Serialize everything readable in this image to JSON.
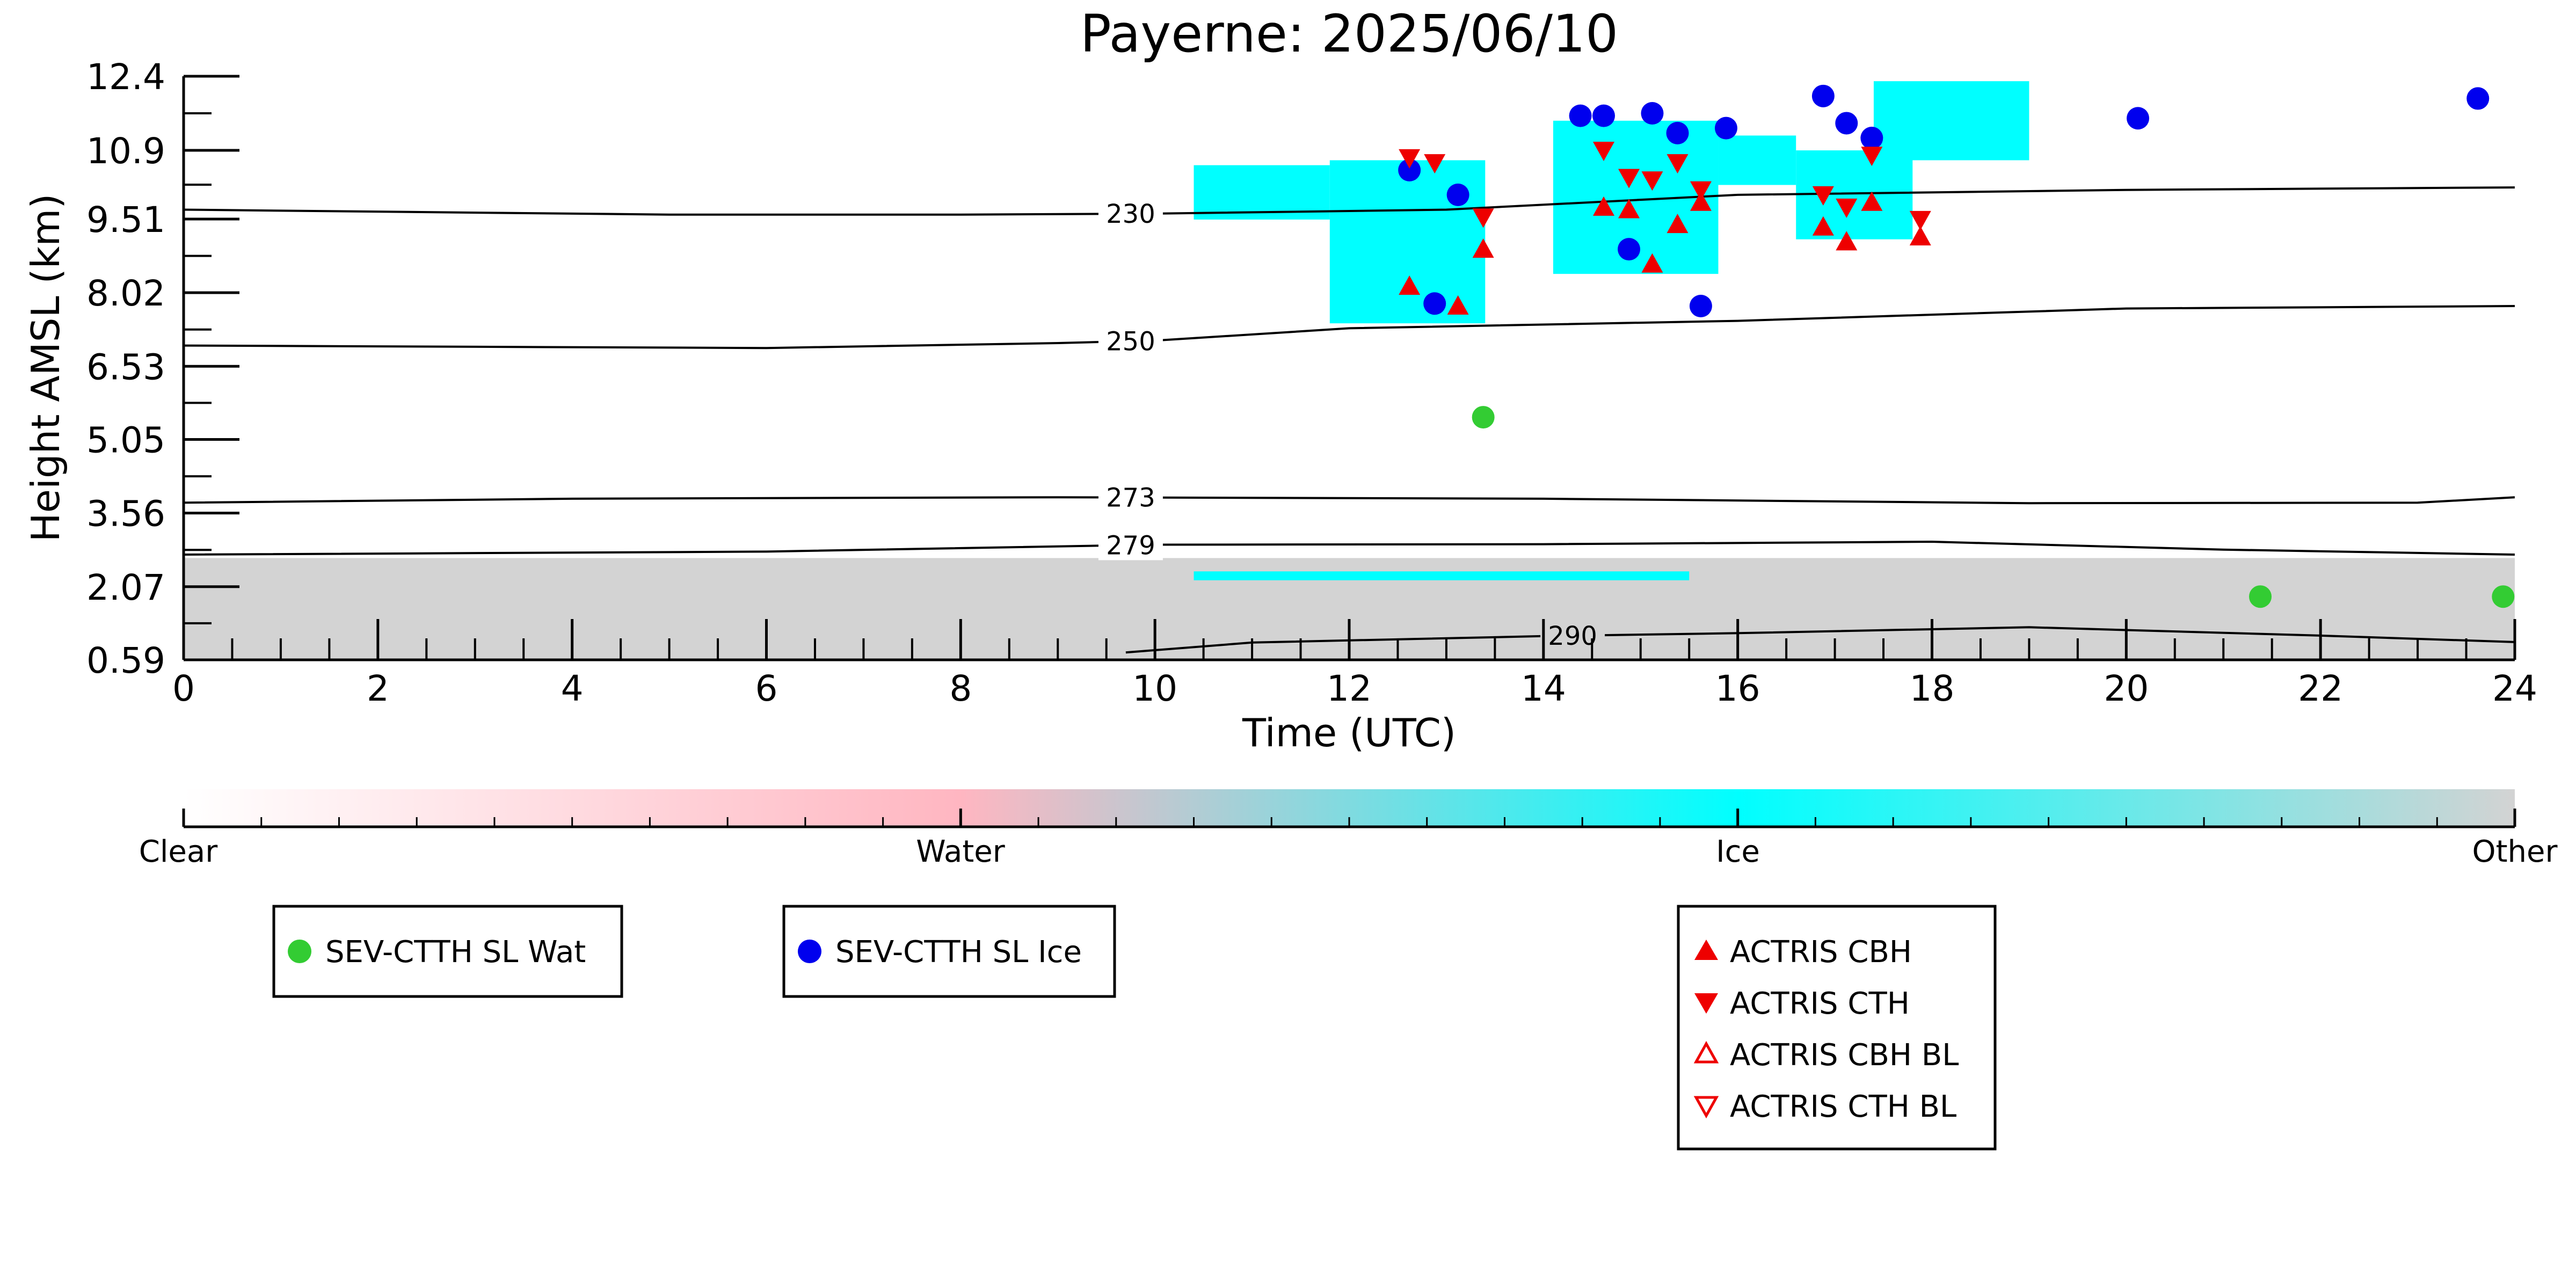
{
  "chart_data": {
    "type": "scatter",
    "title": "Payerne: 2025/06/10",
    "xlabel": "Time (UTC)",
    "ylabel": "Height AMSL (km)",
    "xlim": [
      0,
      24
    ],
    "ylim": [
      0.59,
      12.4
    ],
    "x_ticks": [
      "0",
      "2",
      "4",
      "6",
      "8",
      "10",
      "12",
      "14",
      "16",
      "18",
      "20",
      "22",
      "24"
    ],
    "y_ticks": [
      "0.59",
      "2.07",
      "3.56",
      "5.05",
      "6.53",
      "8.02",
      "9.51",
      "10.9",
      "12.4"
    ],
    "colorbar": {
      "labels": [
        "Clear",
        "Water",
        "Ice",
        "Other"
      ],
      "colors": [
        "#ffffff",
        "#ffb6c1",
        "#00ffff",
        "#d3d3d3"
      ]
    },
    "temperature_contours": [
      {
        "label": "230",
        "points": [
          [
            0,
            9.7
          ],
          [
            5,
            9.6
          ],
          [
            8,
            9.6
          ],
          [
            10,
            9.62
          ],
          [
            13,
            9.7
          ],
          [
            16,
            10.0
          ],
          [
            20,
            10.1
          ],
          [
            24,
            10.15
          ]
        ]
      },
      {
        "label": "250",
        "points": [
          [
            0,
            6.95
          ],
          [
            6,
            6.9
          ],
          [
            9,
            7.0
          ],
          [
            10,
            7.05
          ],
          [
            12,
            7.3
          ],
          [
            16,
            7.45
          ],
          [
            20,
            7.7
          ],
          [
            24,
            7.75
          ]
        ]
      },
      {
        "label": "273",
        "points": [
          [
            0,
            3.77
          ],
          [
            4,
            3.85
          ],
          [
            9,
            3.88
          ],
          [
            14,
            3.85
          ],
          [
            19,
            3.76
          ],
          [
            23,
            3.77
          ],
          [
            24,
            3.88
          ]
        ]
      },
      {
        "label": "279",
        "points": [
          [
            0,
            2.72
          ],
          [
            6,
            2.78
          ],
          [
            10,
            2.92
          ],
          [
            14,
            2.93
          ],
          [
            18,
            2.98
          ],
          [
            21,
            2.82
          ],
          [
            24,
            2.72
          ]
        ]
      },
      {
        "label": "290",
        "points": [
          [
            9.7,
            0.74
          ],
          [
            11,
            0.94
          ],
          [
            14,
            1.07
          ],
          [
            16,
            1.13
          ],
          [
            19,
            1.25
          ],
          [
            22,
            1.08
          ],
          [
            24,
            0.95
          ]
        ]
      }
    ],
    "series": [
      {
        "name": "SEV-CTTH SL Wat",
        "marker": "filled-circle",
        "color": "#33cc33",
        "points": [
          [
            13.38,
            5.5
          ],
          [
            21.38,
            1.87
          ],
          [
            23.88,
            1.87
          ]
        ]
      },
      {
        "name": "SEV-CTTH SL Ice",
        "marker": "filled-circle",
        "color": "#0000ee",
        "points": [
          [
            12.62,
            10.5
          ],
          [
            13.12,
            10.0
          ],
          [
            12.88,
            7.8
          ],
          [
            14.38,
            11.6
          ],
          [
            14.62,
            11.6
          ],
          [
            14.88,
            8.9
          ],
          [
            15.12,
            11.65
          ],
          [
            15.38,
            11.25
          ],
          [
            15.62,
            7.75
          ],
          [
            15.88,
            11.35
          ],
          [
            16.88,
            12.0
          ],
          [
            17.12,
            11.45
          ],
          [
            17.38,
            11.15
          ],
          [
            20.12,
            11.55
          ],
          [
            23.62,
            11.95
          ]
        ]
      },
      {
        "name": "ACTRIS CBH",
        "marker": "filled-triangle-up",
        "color": "#ee0000",
        "points": [
          [
            12.62,
            8.15
          ],
          [
            13.12,
            7.75
          ],
          [
            13.38,
            8.9
          ],
          [
            14.62,
            9.75
          ],
          [
            14.88,
            9.7
          ],
          [
            15.12,
            8.6
          ],
          [
            15.38,
            9.4
          ],
          [
            15.62,
            9.85
          ],
          [
            16.88,
            9.35
          ],
          [
            17.12,
            9.05
          ],
          [
            17.38,
            9.85
          ],
          [
            17.88,
            9.15
          ]
        ]
      },
      {
        "name": "ACTRIS CTH",
        "marker": "filled-triangle-down",
        "color": "#ee0000",
        "points": [
          [
            12.62,
            10.75
          ],
          [
            12.88,
            10.65
          ],
          [
            13.38,
            9.55
          ],
          [
            14.62,
            10.9
          ],
          [
            14.88,
            10.35
          ],
          [
            15.12,
            10.3
          ],
          [
            15.38,
            10.65
          ],
          [
            15.62,
            10.1
          ],
          [
            16.88,
            10.0
          ],
          [
            17.12,
            9.75
          ],
          [
            17.38,
            10.8
          ],
          [
            17.88,
            9.5
          ]
        ]
      },
      {
        "name": "ACTRIS CBH BL",
        "marker": "open-triangle-up",
        "color": "#ee0000",
        "points": []
      },
      {
        "name": "ACTRIS CTH BL",
        "marker": "open-triangle-down",
        "color": "#ee0000",
        "points": []
      }
    ],
    "classification_regions": [
      {
        "class": "Other",
        "color": "#d3d3d3",
        "x0": 0,
        "x1": 24,
        "y0": 0.59,
        "y1": 2.65
      },
      {
        "class": "Ice",
        "color": "#00ffff",
        "x0": 10.4,
        "x1": 15.5,
        "y0": 2.2,
        "y1": 2.38
      },
      {
        "class": "Ice",
        "color": "#00ffff",
        "x0": 11.8,
        "x1": 13.4,
        "y0": 7.4,
        "y1": 10.7
      },
      {
        "class": "Ice",
        "color": "#00ffff",
        "x0": 10.4,
        "x1": 11.8,
        "y0": 9.5,
        "y1": 10.6
      },
      {
        "class": "Ice",
        "color": "#00ffff",
        "x0": 14.1,
        "x1": 15.8,
        "y0": 8.4,
        "y1": 11.5
      },
      {
        "class": "Ice",
        "color": "#00ffff",
        "x0": 15.8,
        "x1": 16.6,
        "y0": 10.2,
        "y1": 11.2
      },
      {
        "class": "Ice",
        "color": "#00ffff",
        "x0": 16.6,
        "x1": 17.8,
        "y0": 9.1,
        "y1": 10.9
      },
      {
        "class": "Ice",
        "color": "#00ffff",
        "x0": 17.4,
        "x1": 19.0,
        "y0": 10.7,
        "y1": 12.3
      }
    ]
  },
  "legends": {
    "water_box": [
      "SEV-CTTH SL Wat"
    ],
    "ice_box": [
      "SEV-CTTH SL Ice"
    ],
    "actris_box": [
      "ACTRIS CBH",
      "ACTRIS CTH",
      "ACTRIS CBH BL",
      "ACTRIS CTH BL"
    ]
  }
}
